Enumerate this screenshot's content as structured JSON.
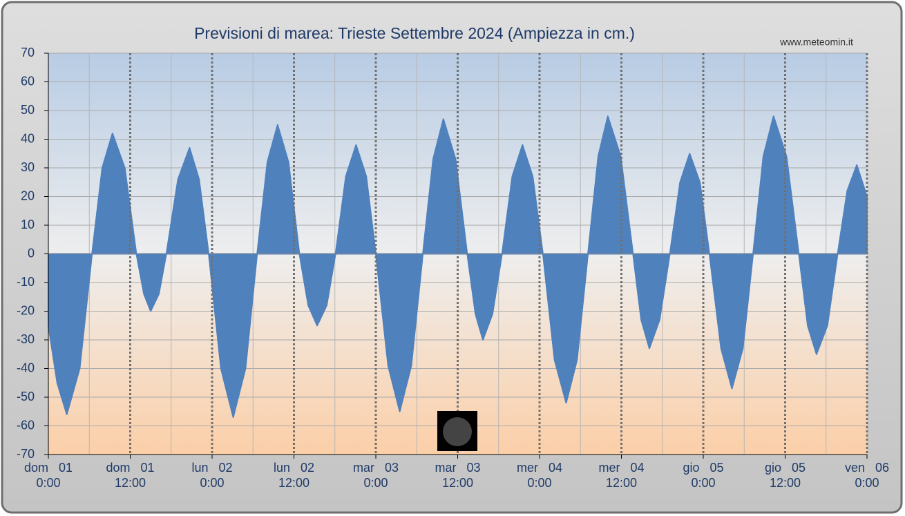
{
  "chart_data": {
    "type": "area",
    "title": "Previsioni di marea: Trieste Settembre 2024 (Ampiezza in cm.)",
    "source": "www.meteomin.it",
    "color": "#4f81bd",
    "x": [
      0,
      1.3,
      2.7,
      4.6,
      6.4,
      7.9,
      9.4,
      11.2,
      12.9,
      14.0,
      15.0,
      16.2,
      17.3,
      19.0,
      20.7,
      22.1,
      23.5,
      25.3,
      27.1,
      28.9,
      30.6,
      32.1,
      33.6,
      35.2,
      36.8,
      38.1,
      39.4,
      40.8,
      42.1,
      43.6,
      45.1,
      46.6,
      48.0,
      49.8,
      51.5,
      53.2,
      54.9,
      56.4,
      57.9,
      59.7,
      61.4,
      62.6,
      63.7,
      65.1,
      66.5,
      68.0,
      69.5,
      71.0,
      72.5,
      74.2,
      75.9,
      77.5,
      79.1,
      80.6,
      82.0,
      83.9,
      85.7,
      86.9,
      88.1,
      89.6,
      91.1,
      92.6,
      94.0,
      95.5,
      96.9,
      98.6,
      100.2,
      101.8,
      103.3,
      104.8,
      106.3,
      108.2,
      110.0,
      111.3,
      112.6,
      114.2,
      115.7,
      117.1,
      118.5,
      120
    ],
    "values": [
      -25,
      -45,
      -56,
      -40,
      0,
      30,
      42,
      30,
      0,
      -14,
      -20,
      -14,
      0,
      26,
      37,
      26,
      0,
      -40,
      -57,
      -40,
      0,
      32,
      45,
      32,
      0,
      -18,
      -25,
      -18,
      0,
      27,
      38,
      27,
      0,
      -39,
      -55,
      -39,
      0,
      33,
      47,
      33,
      0,
      -21,
      -30,
      -21,
      0,
      27,
      38,
      27,
      0,
      -37,
      -52,
      -37,
      0,
      34,
      48,
      34,
      0,
      -23,
      -33,
      -23,
      0,
      25,
      35,
      25,
      0,
      -33,
      -47,
      -33,
      0,
      34,
      48,
      34,
      0,
      -25,
      -35,
      -25,
      0,
      22,
      31,
      20
    ],
    "xlim": [
      0,
      120
    ],
    "xticks": [
      {
        "value": 0,
        "label": "dom   01",
        "sublabel": "0:00"
      },
      {
        "value": 12,
        "label": "dom   01",
        "sublabel": "12:00"
      },
      {
        "value": 24,
        "label": "lun   02",
        "sublabel": "0:00"
      },
      {
        "value": 36,
        "label": "lun   02",
        "sublabel": "12:00"
      },
      {
        "value": 48,
        "label": "mar   03",
        "sublabel": "0:00"
      },
      {
        "value": 60,
        "label": "mar   03",
        "sublabel": "12:00"
      },
      {
        "value": 72,
        "label": "mer   04",
        "sublabel": "0:00"
      },
      {
        "value": 84,
        "label": "mer   04",
        "sublabel": "12:00"
      },
      {
        "value": 96,
        "label": "gio   05",
        "sublabel": "0:00"
      },
      {
        "value": 108,
        "label": "gio   05",
        "sublabel": "12:00"
      },
      {
        "value": 120,
        "label": "ven   06",
        "sublabel": "0:00"
      }
    ],
    "xminor": [
      6,
      18,
      30,
      42,
      54,
      66,
      78,
      90,
      102,
      114
    ],
    "ylim": [
      -70,
      70
    ],
    "yticks": [
      -70,
      -60,
      -50,
      -40,
      -30,
      -20,
      -10,
      0,
      10,
      20,
      30,
      40,
      50,
      60,
      70
    ],
    "grid": true
  }
}
